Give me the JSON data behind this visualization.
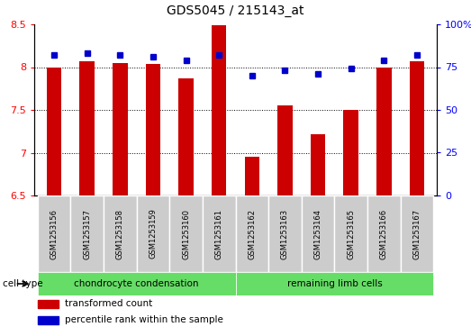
{
  "title": "GDS5045 / 215143_at",
  "categories": [
    "GSM1253156",
    "GSM1253157",
    "GSM1253158",
    "GSM1253159",
    "GSM1253160",
    "GSM1253161",
    "GSM1253162",
    "GSM1253163",
    "GSM1253164",
    "GSM1253165",
    "GSM1253166",
    "GSM1253167"
  ],
  "bar_values": [
    7.99,
    8.07,
    8.05,
    8.04,
    7.87,
    8.49,
    6.95,
    7.55,
    7.22,
    7.5,
    7.99,
    8.07
  ],
  "dot_values_pct": [
    82,
    83,
    82,
    81,
    79,
    82,
    70,
    73,
    71,
    74,
    79,
    82
  ],
  "ylim_left": [
    6.5,
    8.5
  ],
  "ylim_right": [
    0,
    100
  ],
  "yticks_left": [
    6.5,
    7.0,
    7.5,
    8.0,
    8.5
  ],
  "ytick_labels_left": [
    "6.5",
    "7",
    "7.5",
    "8",
    "8.5"
  ],
  "yticks_right": [
    0,
    25,
    50,
    75,
    100
  ],
  "ytick_labels_right": [
    "0",
    "25",
    "50",
    "75",
    "100%"
  ],
  "bar_color": "#cc0000",
  "dot_color": "#0000cc",
  "bar_bottom": 6.5,
  "group1_label": "chondrocyte condensation",
  "group2_label": "remaining limb cells",
  "group_color": "#66dd66",
  "cell_type_label": "cell type",
  "legend_items": [
    {
      "label": "transformed count",
      "color": "#cc0000"
    },
    {
      "label": "percentile rank within the sample",
      "color": "#0000cc"
    }
  ],
  "tick_label_bg": "#cccccc",
  "title_fontsize": 10,
  "bar_width": 0.45
}
